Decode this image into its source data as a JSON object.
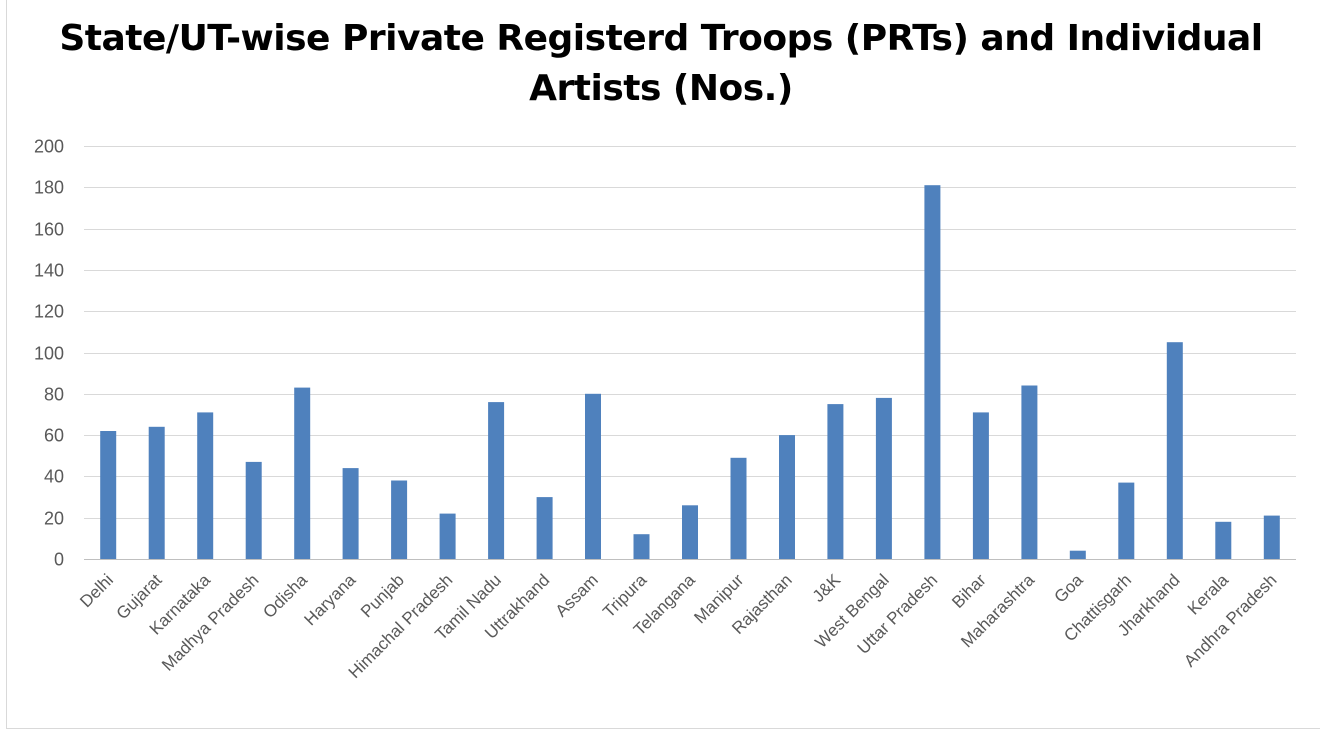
{
  "chart_data": {
    "type": "bar",
    "title": "State/UT-wise Private Registerd Troops (PRTs) and Individual Artists (Nos.)",
    "xlabel": "",
    "ylabel": "",
    "ylim": [
      0,
      200
    ],
    "yticks": [
      0,
      20,
      40,
      60,
      80,
      100,
      120,
      140,
      160,
      180,
      200
    ],
    "grid": true,
    "legend": "none",
    "bar_color": "#4f81bd",
    "categories": [
      "Delhi",
      "Gujarat",
      "Karnataka",
      "Madhya Pradesh",
      "Odisha",
      "Haryana",
      "Punjab",
      "Himachal Pradesh",
      "Tamil Nadu",
      "Uttrakhand",
      "Assam",
      "Tripura",
      "Telangana",
      "Manipur",
      "Rajasthan",
      "J&K",
      "West Bengal",
      "Uttar Pradesh",
      "Bihar",
      "Maharashtra",
      "Goa",
      "Chattisgarh",
      "Jharkhand",
      "Kerala",
      "Andhra Pradesh"
    ],
    "values": [
      62,
      64,
      71,
      47,
      83,
      44,
      38,
      22,
      76,
      30,
      80,
      12,
      26,
      49,
      60,
      75,
      78,
      181,
      71,
      84,
      4,
      37,
      105,
      18,
      21
    ]
  }
}
